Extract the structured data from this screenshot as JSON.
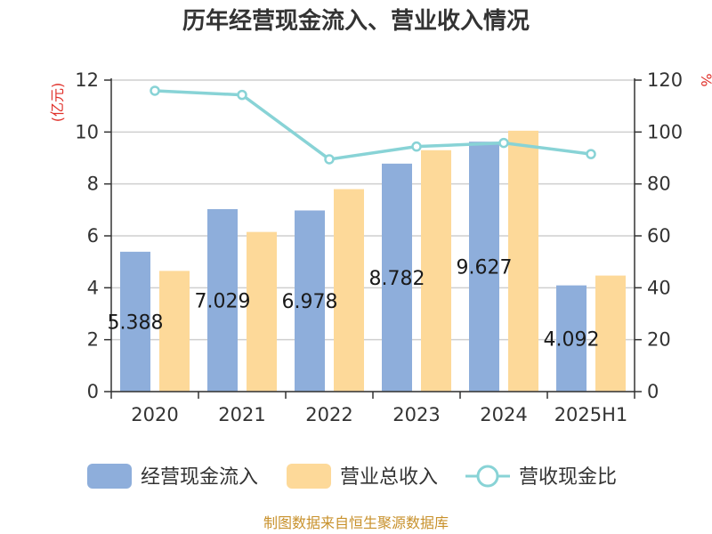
{
  "chart_data": {
    "type": "bar",
    "title": "历年经营现金流入、营业收入情况",
    "categories": [
      "2020",
      "2021",
      "2022",
      "2023",
      "2024",
      "2025H1"
    ],
    "y_left_label": "(亿元)",
    "y_right_label": "%",
    "y_left_range": [
      0,
      12
    ],
    "y_right_range": [
      0,
      120
    ],
    "y_left_ticks": [
      0,
      2,
      4,
      6,
      8,
      10,
      12
    ],
    "y_right_ticks": [
      0,
      20,
      40,
      60,
      80,
      100,
      120
    ],
    "grid": true,
    "legend_position": "bottom",
    "series": [
      {
        "name": "经营现金流入",
        "type": "bar",
        "axis": "left",
        "color": "#8eaedb",
        "values": [
          5.388,
          7.029,
          6.978,
          8.782,
          9.627,
          4.092
        ],
        "labels": [
          "5.388",
          "7.029",
          "6.978",
          "8.782",
          "9.627",
          "4.092"
        ]
      },
      {
        "name": "营业总收入",
        "type": "bar",
        "axis": "left",
        "color": "#fdd999",
        "values": [
          4.65,
          6.15,
          7.8,
          9.3,
          10.05,
          4.47
        ]
      },
      {
        "name": "营收现金比",
        "type": "line",
        "axis": "right",
        "color": "#88d3d6",
        "values": [
          115.9,
          114.3,
          89.5,
          94.4,
          95.8,
          91.5
        ]
      }
    ],
    "source": "制图数据来自恒生聚源数据库"
  }
}
